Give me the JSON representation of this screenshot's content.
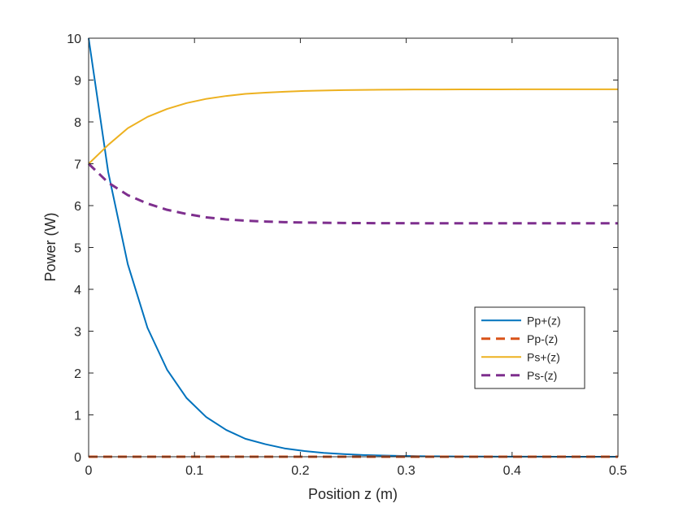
{
  "chart_data": {
    "type": "line",
    "title": "",
    "xlabel": "Position z (m)",
    "ylabel": "Power (W)",
    "xlim": [
      0,
      0.5
    ],
    "ylim": [
      0,
      10
    ],
    "xticks": [
      0,
      0.1,
      0.2,
      0.3,
      0.4,
      0.5
    ],
    "xtick_labels": [
      "0",
      "0.1",
      "0.2",
      "0.3",
      "0.4",
      "0.5"
    ],
    "yticks": [
      0,
      1,
      2,
      3,
      4,
      5,
      6,
      7,
      8,
      9,
      10
    ],
    "ytick_labels": [
      "0",
      "1",
      "2",
      "3",
      "4",
      "5",
      "6",
      "7",
      "8",
      "9",
      "10"
    ],
    "grid": false,
    "legend_position": "right",
    "x": [
      0,
      0.0185,
      0.037,
      0.0556,
      0.0741,
      0.0926,
      0.111,
      0.13,
      0.148,
      0.167,
      0.185,
      0.204,
      0.222,
      0.241,
      0.259,
      0.278,
      0.296,
      0.315,
      0.333,
      0.352,
      0.37,
      0.389,
      0.407,
      0.426,
      0.444,
      0.463,
      0.481,
      0.5
    ],
    "series": [
      {
        "name": "Pp+(z)",
        "color": "#0072BD",
        "style": "solid",
        "values": [
          10,
          6.8,
          4.6,
          3.08,
          2.08,
          1.4,
          0.95,
          0.64,
          0.43,
          0.3,
          0.2,
          0.135,
          0.092,
          0.062,
          0.042,
          0.029,
          0.02,
          0.013,
          0.009,
          0.006,
          0.004,
          0.003,
          0.002,
          0.0014,
          0.001,
          0.0006,
          0.0004,
          0.0003
        ]
      },
      {
        "name": "Pp-(z)",
        "color": "#D95319",
        "style": "dashed",
        "values": [
          0,
          0,
          0,
          0,
          0,
          0,
          0,
          0,
          0,
          0,
          0,
          0,
          0,
          0,
          0,
          0,
          0,
          0,
          0,
          0,
          0,
          0,
          0,
          0,
          0,
          0,
          0,
          0
        ]
      },
      {
        "name": "Ps+(z)",
        "color": "#EDB120",
        "style": "solid",
        "values": [
          7.0,
          7.45,
          7.85,
          8.12,
          8.31,
          8.45,
          8.55,
          8.62,
          8.67,
          8.7,
          8.72,
          8.74,
          8.75,
          8.76,
          8.765,
          8.77,
          8.772,
          8.774,
          8.775,
          8.776,
          8.777,
          8.777,
          8.778,
          8.778,
          8.778,
          8.778,
          8.778,
          8.778
        ]
      },
      {
        "name": "Ps-(z)",
        "color": "#7E2F8E",
        "style": "dashed",
        "values": [
          7.0,
          6.55,
          6.25,
          6.05,
          5.9,
          5.8,
          5.72,
          5.67,
          5.64,
          5.62,
          5.605,
          5.595,
          5.59,
          5.585,
          5.582,
          5.58,
          5.579,
          5.578,
          5.578,
          5.577,
          5.577,
          5.577,
          5.577,
          5.577,
          5.577,
          5.577,
          5.577,
          5.577
        ]
      }
    ]
  }
}
